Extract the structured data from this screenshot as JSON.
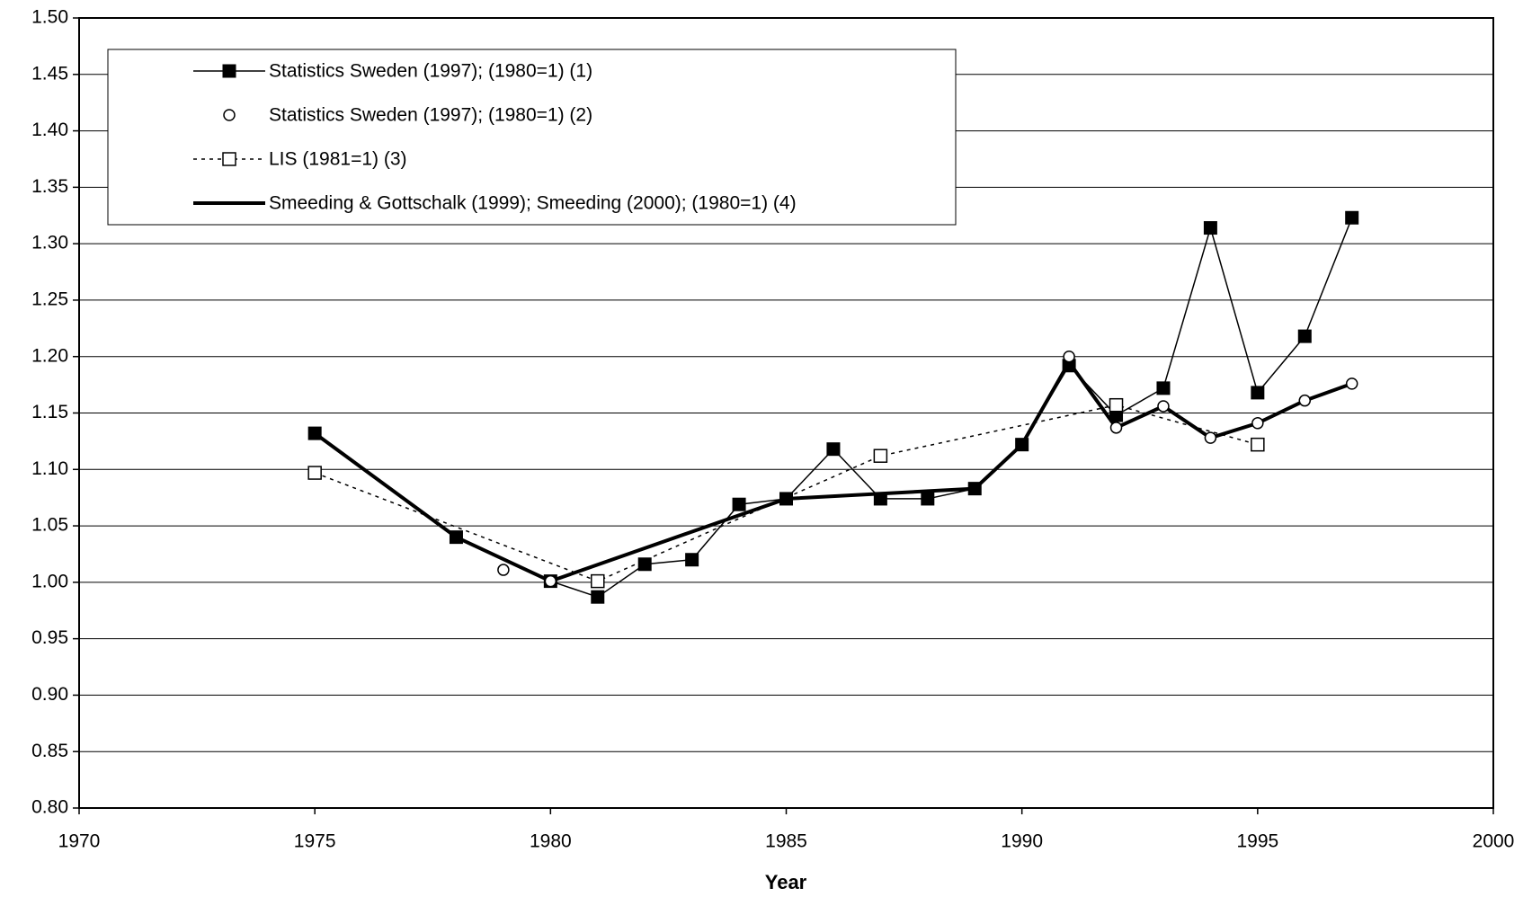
{
  "chart_data": {
    "type": "line",
    "xlabel": "Year",
    "xlim": [
      1970,
      2000
    ],
    "xticks": [
      1970,
      1975,
      1980,
      1985,
      1990,
      1995,
      2000
    ],
    "ylim": [
      0.8,
      1.5
    ],
    "yticks": [
      {
        "value": 0.8,
        "label": "0.80"
      },
      {
        "value": 0.85,
        "label": "0.85"
      },
      {
        "value": 0.9,
        "label": "0.90"
      },
      {
        "value": 0.95,
        "label": "0.95"
      },
      {
        "value": 1.0,
        "label": "1.00"
      },
      {
        "value": 1.05,
        "label": "1.05"
      },
      {
        "value": 1.1,
        "label": "1.10"
      },
      {
        "value": 1.15,
        "label": "1.15"
      },
      {
        "value": 1.2,
        "label": "1.20"
      },
      {
        "value": 1.25,
        "label": "1.25"
      },
      {
        "value": 1.3,
        "label": "1.30"
      },
      {
        "value": 1.35,
        "label": "1.35"
      },
      {
        "value": 1.4,
        "label": "1.40"
      },
      {
        "value": 1.45,
        "label": "1.45"
      },
      {
        "value": 1.5,
        "label": "1.50"
      }
    ],
    "grid": true,
    "legend": "top-left",
    "series": [
      {
        "name": "Statistics Sweden (1997); (1980=1) (1)",
        "color": "#000000",
        "line_style": "solid",
        "line_width": 1.5,
        "marker": "filled-square",
        "x": [
          1975,
          1978,
          1980,
          1981,
          1982,
          1983,
          1984,
          1985,
          1986,
          1987,
          1988,
          1989,
          1990,
          1991,
          1992,
          1993,
          1994,
          1995,
          1996,
          1997
        ],
        "values": [
          1.132,
          1.04,
          1.001,
          0.987,
          1.016,
          1.02,
          1.069,
          1.074,
          1.118,
          1.074,
          1.074,
          1.083,
          1.122,
          1.192,
          1.148,
          1.172,
          1.314,
          1.168,
          1.218,
          1.323
        ]
      },
      {
        "name": "Statistics Sweden (1997); (1980=1) (2)",
        "color": "#000000",
        "line_style": "none",
        "line_width": 0,
        "marker": "circle",
        "x": [
          1979,
          1980,
          1991,
          1992,
          1993,
          1994,
          1995,
          1996,
          1997
        ],
        "values": [
          1.011,
          1.001,
          1.2,
          1.137,
          1.156,
          1.128,
          1.141,
          1.161,
          1.176
        ]
      },
      {
        "name": "LIS (1981=1) (3)",
        "color": "#000000",
        "line_style": "dotted",
        "line_width": 1.5,
        "marker": "open-square",
        "x": [
          1975,
          1981,
          1987,
          1992,
          1995
        ],
        "values": [
          1.097,
          1.001,
          1.112,
          1.157,
          1.122
        ]
      },
      {
        "name": "Smeeding & Gottschalk (1999); Smeeding (2000); (1980=1) (4)",
        "color": "#000000",
        "line_style": "solid",
        "line_width": 4,
        "marker": "none",
        "x": [
          1975,
          1978,
          1980,
          1985,
          1989,
          1990,
          1991,
          1992,
          1993,
          1994,
          1995,
          1996,
          1997
        ],
        "values": [
          1.132,
          1.04,
          1.001,
          1.074,
          1.083,
          1.122,
          1.195,
          1.137,
          1.156,
          1.128,
          1.141,
          1.161,
          1.176
        ]
      }
    ]
  }
}
